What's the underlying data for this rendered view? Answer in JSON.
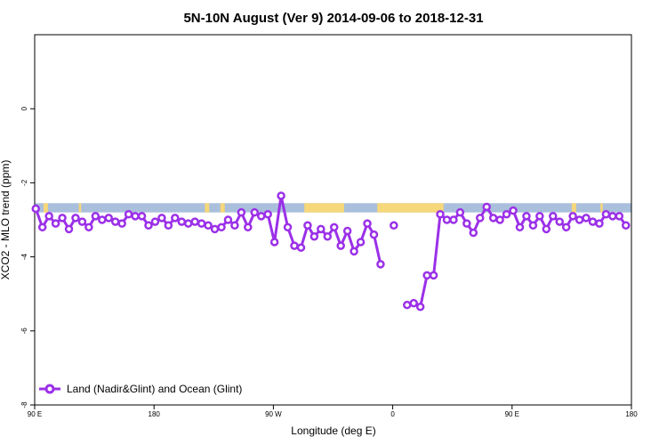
{
  "chart_data": {
    "type": "line",
    "title": "5N-10N August (Ver 9)   2014-09-06 to 2018-12-31",
    "xlabel": "Longitude (deg E)",
    "ylabel": "XCO2 - MLO trend (ppm)",
    "xlim": [
      -90,
      180
    ],
    "ylim": [
      -8,
      2
    ],
    "grid": false,
    "legend_position": "bottom-left",
    "x_ticks": [
      {
        "value": -90,
        "label": "90 E"
      },
      {
        "value": -36,
        "label": "180"
      },
      {
        "value": 18,
        "label": "90 W"
      },
      {
        "value": 72,
        "label": "0"
      },
      {
        "value": 126,
        "label": "90 E"
      },
      {
        "value": 180,
        "label": "180"
      }
    ],
    "y_ticks": [
      {
        "value": 0,
        "label": "0"
      },
      {
        "value": -2,
        "label": "-2"
      },
      {
        "value": -4,
        "label": "-4"
      },
      {
        "value": -6,
        "label": "-6"
      },
      {
        "value": -8,
        "label": "-8"
      }
    ],
    "colors": {
      "series": "#9b30e8",
      "ocean": "#a9bfdc",
      "land": "#f6d77a"
    },
    "land_ocean_band": {
      "y_range": [
        -2.55,
        -2.8
      ],
      "land_segments": [
        [
          -86,
          -84
        ],
        [
          -70,
          -69
        ],
        [
          -13,
          -11
        ],
        [
          -6,
          -4
        ],
        [
          32,
          50
        ],
        [
          65,
          95
        ],
        [
          153,
          155
        ],
        [
          166,
          167
        ]
      ]
    },
    "series": [
      {
        "name": "Land (Nadir&Glint) and Ocean (Glint)",
        "points": [
          [
            -89.5,
            -2.7
          ],
          [
            -86.5,
            -3.2
          ],
          [
            -83.5,
            -2.9
          ],
          [
            -80.5,
            -3.1
          ],
          [
            -77.5,
            -2.95
          ],
          [
            -74.5,
            -3.25
          ],
          [
            -71.5,
            -2.95
          ],
          [
            -68.5,
            -3.05
          ],
          [
            -65.5,
            -3.2
          ],
          [
            -62.5,
            -2.9
          ],
          [
            -59.5,
            -3.0
          ],
          [
            -56.5,
            -2.95
          ],
          [
            -53.5,
            -3.05
          ],
          [
            -50.5,
            -3.1
          ],
          [
            -47.5,
            -2.85
          ],
          [
            -44.5,
            -2.9
          ],
          [
            -41.5,
            -2.9
          ],
          [
            -38.5,
            -3.15
          ],
          [
            -35.5,
            -3.05
          ],
          [
            -32.5,
            -2.95
          ],
          [
            -29.5,
            -3.15
          ],
          [
            -26.5,
            -2.95
          ],
          [
            -23.5,
            -3.05
          ],
          [
            -20.5,
            -3.1
          ],
          [
            -17.5,
            -3.05
          ],
          [
            -14.5,
            -3.1
          ],
          [
            -11.5,
            -3.15
          ],
          [
            -8.5,
            -3.25
          ],
          [
            -5.5,
            -3.2
          ],
          [
            -2.5,
            -3.0
          ],
          [
            0.5,
            -3.15
          ],
          [
            3.5,
            -2.8
          ],
          [
            6.5,
            -3.2
          ],
          [
            9.5,
            -2.8
          ],
          [
            12.5,
            -2.9
          ],
          [
            15.5,
            -2.85
          ],
          [
            18.5,
            -3.6
          ],
          [
            21.5,
            -2.35
          ],
          [
            24.5,
            -3.2
          ],
          [
            27.5,
            -3.7
          ],
          [
            30.5,
            -3.75
          ],
          [
            33.5,
            -3.15
          ],
          [
            36.5,
            -3.45
          ],
          [
            39.5,
            -3.25
          ],
          [
            42.5,
            -3.45
          ],
          [
            45.5,
            -3.2
          ],
          [
            48.5,
            -3.7
          ],
          [
            51.5,
            -3.3
          ],
          [
            54.5,
            -3.85
          ],
          [
            57.5,
            -3.6
          ],
          [
            60.5,
            -3.1
          ],
          [
            63.5,
            -3.4
          ],
          [
            66.5,
            -4.2
          ],
          null,
          [
            72.5,
            -3.15
          ],
          null,
          [
            78.5,
            -5.3
          ],
          [
            81.5,
            -5.25
          ],
          [
            84.5,
            -5.35
          ],
          [
            87.5,
            -4.5
          ],
          [
            90.5,
            -4.5
          ],
          [
            93.5,
            -2.85
          ],
          [
            96.5,
            -3.0
          ],
          [
            99.5,
            -3.0
          ],
          [
            102.5,
            -2.8
          ],
          [
            105.5,
            -3.1
          ],
          [
            108.5,
            -3.35
          ],
          [
            111.5,
            -2.95
          ],
          [
            114.5,
            -2.65
          ],
          [
            117.5,
            -2.95
          ],
          [
            120.5,
            -3.0
          ],
          [
            123.5,
            -2.85
          ],
          [
            126.5,
            -2.75
          ],
          [
            129.5,
            -3.2
          ],
          [
            132.5,
            -2.9
          ],
          [
            135.5,
            -3.15
          ],
          [
            138.5,
            -2.9
          ],
          [
            141.5,
            -3.25
          ],
          [
            144.5,
            -2.9
          ],
          [
            147.5,
            -3.05
          ],
          [
            150.5,
            -3.2
          ],
          [
            153.5,
            -2.9
          ],
          [
            156.5,
            -3.0
          ],
          [
            159.5,
            -2.95
          ],
          [
            162.5,
            -3.05
          ],
          [
            165.5,
            -3.1
          ],
          [
            168.5,
            -2.85
          ],
          [
            171.5,
            -2.9
          ],
          [
            174.5,
            -2.9
          ],
          [
            177.5,
            -3.15
          ]
        ]
      }
    ]
  }
}
